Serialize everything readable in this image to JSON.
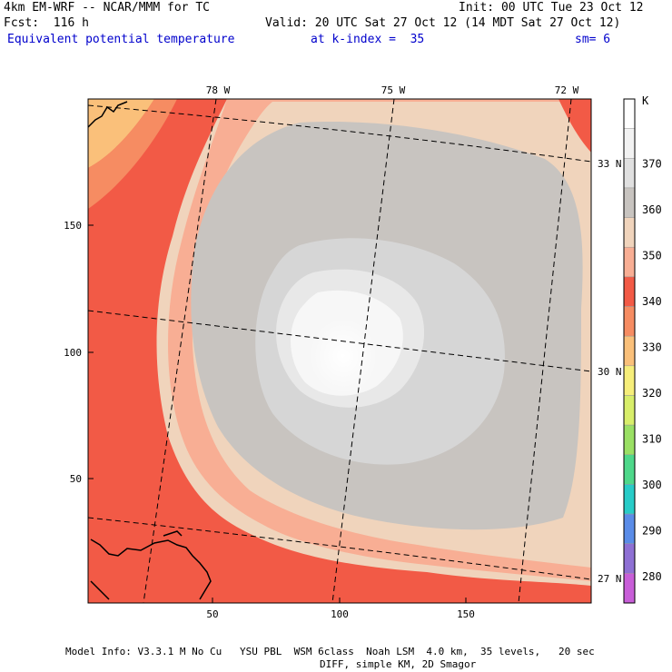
{
  "header": {
    "model": "4km EM-WRF -- NCAR/MMM for TC",
    "init": "Init: 00 UTC Tue 23 Oct 12",
    "fcst": "Fcst:  116 h",
    "valid": "Valid: 20 UTC Sat 27 Oct 12 (14 MDT Sat 27 Oct 12)",
    "field": "Equivalent potential temperature",
    "kindex": "at k-index =  35",
    "smooth": "sm= 6"
  },
  "map": {
    "lon_labels": [
      "78 W",
      "75 W",
      "72 W"
    ],
    "lat_labels": [
      "33 N",
      "30 N",
      "27 N"
    ],
    "y_ticks": [
      "150",
      "100",
      "50"
    ],
    "x_ticks": [
      "50",
      "100",
      "150"
    ]
  },
  "colorbar": {
    "unit": "K",
    "labels": [
      "370",
      "360",
      "350",
      "340",
      "330",
      "320",
      "310",
      "300",
      "290",
      "280"
    ],
    "colors": [
      "#ffffff",
      "#f2f2f2",
      "#e0e0e0",
      "#c8c4c0",
      "#f0d4bc",
      "#f8ae94",
      "#f25a46",
      "#f68c62",
      "#fac07a",
      "#f6ee7a",
      "#d8ee6a",
      "#9ae064",
      "#4ed88a",
      "#28ccc8",
      "#5a8ce8",
      "#8e70d4",
      "#c85ed8"
    ]
  },
  "footer": {
    "line1": "Model Info: V3.3.1 M No Cu   YSU PBL  WSM 6class  Noah LSM  4.0 km,  35 levels,   20 sec",
    "line2": "DIFF, simple KM, 2D Smagor"
  }
}
